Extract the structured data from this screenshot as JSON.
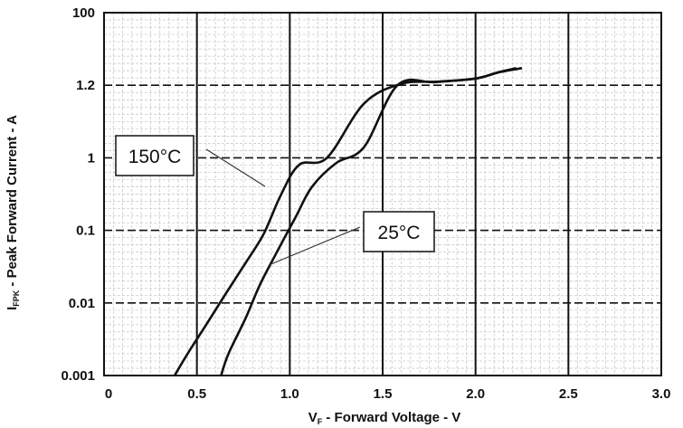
{
  "chart_data": {
    "type": "line",
    "xlabel": {
      "main": "V",
      "sub": "F",
      "rest": " - Forward Voltage - V"
    },
    "ylabel": {
      "main": "I",
      "sub": "FPK",
      "rest": " - Peak Forward Current - A"
    },
    "xlim": [
      0,
      3.0
    ],
    "x_ticks": [
      "0",
      "0.5",
      "1.0",
      "1.5",
      "2.0",
      "2.5",
      "3.0"
    ],
    "y_ticks": [
      "100",
      "1.2",
      "1",
      "0.1",
      "0.01",
      "0.001"
    ],
    "grid": true,
    "series": [
      {
        "name": "150°C",
        "x": [
          0.38,
          0.45,
          0.55,
          0.66,
          0.76,
          0.86,
          0.95,
          1.05,
          1.2,
          1.4,
          1.6,
          1.8,
          2.0,
          2.13,
          2.22
        ],
        "y": [
          0.001,
          0.002,
          0.005,
          0.014,
          0.035,
          0.09,
          0.3,
          0.8,
          1.0,
          1.15,
          1.3,
          1.5,
          1.8,
          2.7,
          3.4
        ]
      },
      {
        "name": "25°C",
        "x": [
          0.63,
          0.67,
          0.76,
          0.84,
          0.93,
          1.03,
          1.12,
          1.25,
          1.4,
          1.58,
          1.78,
          2.0,
          2.12,
          2.25
        ],
        "y": [
          0.001,
          0.002,
          0.006,
          0.018,
          0.05,
          0.15,
          0.4,
          0.85,
          1.03,
          1.2,
          1.45,
          1.8,
          2.6,
          3.4
        ]
      }
    ]
  }
}
